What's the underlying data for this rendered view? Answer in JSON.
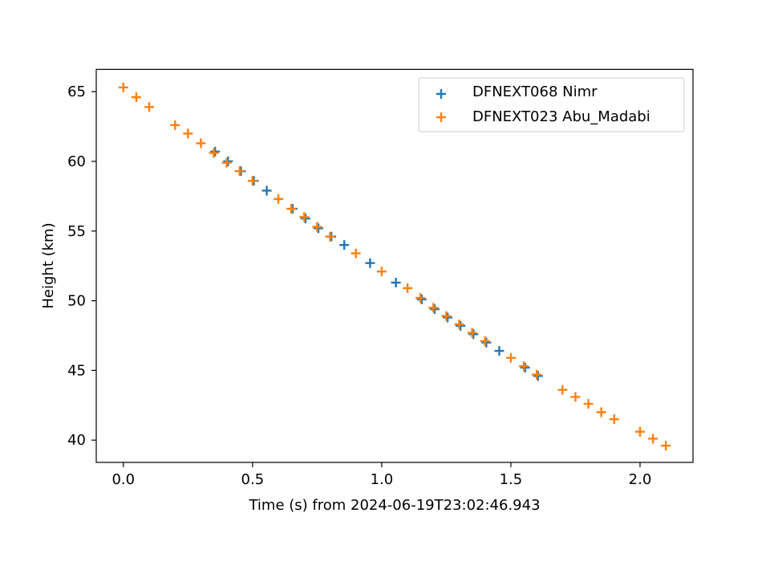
{
  "chart_data": {
    "type": "scatter",
    "xlabel": "Time (s) from 2024-06-19T23:02:46.943",
    "ylabel": "Height (km)",
    "xlim": [
      -0.105,
      2.205
    ],
    "ylim": [
      38.4,
      66.6
    ],
    "xticks": [
      0.0,
      0.5,
      1.0,
      1.5,
      2.0
    ],
    "xtick_labels": [
      "0.0",
      "0.5",
      "1.0",
      "1.5",
      "2.0"
    ],
    "yticks": [
      40,
      45,
      50,
      55,
      60,
      65
    ],
    "ytick_labels": [
      "40",
      "45",
      "50",
      "55",
      "60",
      "65"
    ],
    "grid": false,
    "legend_position": "upper-right",
    "marker": "plus",
    "series": [
      {
        "name": "DFNEXT068 Nimr",
        "color": "#1f77b4",
        "x": [
          0.355,
          0.405,
          0.455,
          0.505,
          0.555,
          0.655,
          0.705,
          0.755,
          0.805,
          0.855,
          0.955,
          1.055,
          1.155,
          1.205,
          1.255,
          1.305,
          1.355,
          1.405,
          1.455,
          1.555,
          1.605
        ],
        "y": [
          60.7,
          60.0,
          59.3,
          58.6,
          57.9,
          56.6,
          55.9,
          55.2,
          54.6,
          54.0,
          52.7,
          51.3,
          50.1,
          49.4,
          48.8,
          48.2,
          47.6,
          47.0,
          46.4,
          45.2,
          44.6
        ]
      },
      {
        "name": "DFNEXT023 Abu_Madabi",
        "color": "#ff7f0e",
        "x": [
          0.0,
          0.05,
          0.1,
          0.2,
          0.25,
          0.3,
          0.35,
          0.4,
          0.45,
          0.5,
          0.6,
          0.65,
          0.7,
          0.75,
          0.8,
          0.9,
          1.0,
          1.1,
          1.15,
          1.2,
          1.25,
          1.3,
          1.35,
          1.4,
          1.5,
          1.55,
          1.6,
          1.7,
          1.75,
          1.8,
          1.85,
          1.9,
          2.0,
          2.05,
          2.1
        ],
        "y": [
          65.3,
          64.6,
          63.9,
          62.6,
          62.0,
          61.3,
          60.6,
          59.9,
          59.3,
          58.6,
          57.3,
          56.6,
          56.0,
          55.3,
          54.6,
          53.4,
          52.1,
          50.9,
          50.2,
          49.5,
          48.9,
          48.3,
          47.7,
          47.1,
          45.9,
          45.3,
          44.7,
          43.6,
          43.1,
          42.6,
          42.0,
          41.5,
          40.6,
          40.1,
          39.6
        ]
      }
    ]
  }
}
